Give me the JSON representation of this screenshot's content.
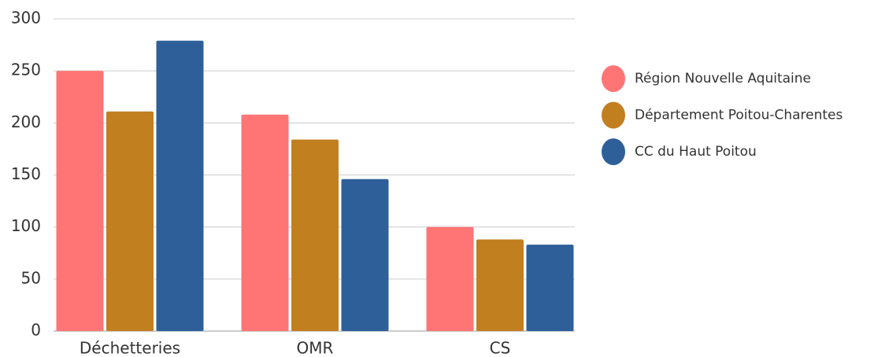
{
  "chart_data": {
    "type": "bar",
    "categories": [
      "Déchetteries",
      "OMR",
      "CS"
    ],
    "series": [
      {
        "name": "Région Nouvelle Aquitaine",
        "color": "#ff7575",
        "values": [
          250,
          208,
          100
        ]
      },
      {
        "name": "Département Poitou-Charentes",
        "color": "#c17f20",
        "values": [
          211,
          184,
          88
        ]
      },
      {
        "name": "CC du Haut Poitou",
        "color": "#2e5f99",
        "values": [
          279,
          146,
          83
        ]
      }
    ],
    "ylim": [
      0,
      300
    ],
    "yticks": [
      0,
      50,
      100,
      150,
      200,
      250,
      300
    ],
    "grid": true,
    "legend": "right"
  }
}
